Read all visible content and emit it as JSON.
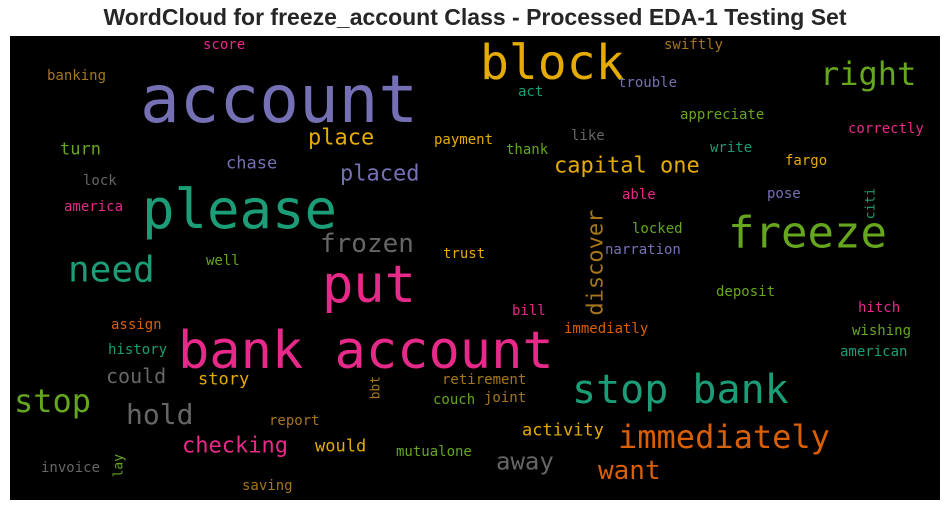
{
  "chart_data": {
    "type": "wordcloud",
    "title": "WordCloud for freeze_account Class - Processed EDA-1 Testing Set",
    "background": "#000000",
    "words": [
      {
        "text": "account",
        "size": 66,
        "color": "#7570b3"
      },
      {
        "text": "bank account",
        "size": 52,
        "color": "#e7298a"
      },
      {
        "text": "please",
        "size": 54,
        "color": "#1b9e77"
      },
      {
        "text": "put",
        "size": 52,
        "color": "#e7298a"
      },
      {
        "text": "block",
        "size": 48,
        "color": "#e6ab02"
      },
      {
        "text": "freeze",
        "size": 44,
        "color": "#66a61e"
      },
      {
        "text": "stop bank",
        "size": 40,
        "color": "#1b9e77"
      },
      {
        "text": "need",
        "size": 36,
        "color": "#1b9e77"
      },
      {
        "text": "immediately",
        "size": 32,
        "color": "#d95f02"
      },
      {
        "text": "right",
        "size": 32,
        "color": "#66a61e"
      },
      {
        "text": "stop",
        "size": 32,
        "color": "#66a61e"
      },
      {
        "text": "hold",
        "size": 28,
        "color": "#666666"
      },
      {
        "text": "frozen",
        "size": 26,
        "color": "#666666"
      },
      {
        "text": "want",
        "size": 26,
        "color": "#d95f02"
      },
      {
        "text": "away",
        "size": 24,
        "color": "#666666"
      },
      {
        "text": "capital one",
        "size": 22,
        "color": "#e6ab02"
      },
      {
        "text": "discover",
        "size": 22,
        "color": "#a6761d"
      },
      {
        "text": "checking",
        "size": 22,
        "color": "#e7298a"
      },
      {
        "text": "placed",
        "size": 22,
        "color": "#7570b3"
      },
      {
        "text": "place",
        "size": 22,
        "color": "#e6ab02"
      },
      {
        "text": "could",
        "size": 20,
        "color": "#666666"
      },
      {
        "text": "chase",
        "size": 17,
        "color": "#7570b3"
      },
      {
        "text": "activity",
        "size": 17,
        "color": "#e6ab02"
      },
      {
        "text": "would",
        "size": 17,
        "color": "#e6ab02"
      },
      {
        "text": "story",
        "size": 17,
        "color": "#e6ab02"
      },
      {
        "text": "turn",
        "size": 17,
        "color": "#66a61e"
      },
      {
        "text": "trust",
        "size": 14,
        "color": "#e6ab02"
      },
      {
        "text": "payment",
        "size": 14,
        "color": "#e6ab02"
      },
      {
        "text": "fargo",
        "size": 14,
        "color": "#e6ab02"
      },
      {
        "text": "locked",
        "size": 14,
        "color": "#66a61e"
      },
      {
        "text": "narration",
        "size": 14,
        "color": "#7570b3"
      },
      {
        "text": "deposit",
        "size": 14,
        "color": "#66a61e"
      },
      {
        "text": "appreciate",
        "size": 14,
        "color": "#66a61e"
      },
      {
        "text": "correctly",
        "size": 14,
        "color": "#e7298a"
      },
      {
        "text": "trouble",
        "size": 14,
        "color": "#7570b3"
      },
      {
        "text": "swiftly",
        "size": 14,
        "color": "#a6761d"
      },
      {
        "text": "score",
        "size": 14,
        "color": "#e7298a"
      },
      {
        "text": "banking",
        "size": 14,
        "color": "#a6761d"
      },
      {
        "text": "act",
        "size": 14,
        "color": "#1b9e77"
      },
      {
        "text": "like",
        "size": 14,
        "color": "#666666"
      },
      {
        "text": "thank",
        "size": 14,
        "color": "#66a61e"
      },
      {
        "text": "write",
        "size": 14,
        "color": "#1b9e77"
      },
      {
        "text": "able",
        "size": 14,
        "color": "#e7298a"
      },
      {
        "text": "pose",
        "size": 14,
        "color": "#7570b3"
      },
      {
        "text": "citi",
        "size": 13,
        "color": "#1b9e77"
      },
      {
        "text": "lock",
        "size": 14,
        "color": "#666666"
      },
      {
        "text": "america",
        "size": 14,
        "color": "#e7298a"
      },
      {
        "text": "well",
        "size": 14,
        "color": "#66a61e"
      },
      {
        "text": "bill",
        "size": 14,
        "color": "#e7298a"
      },
      {
        "text": "immediatly",
        "size": 14,
        "color": "#d95f02"
      },
      {
        "text": "hitch",
        "size": 14,
        "color": "#e7298a"
      },
      {
        "text": "wishing",
        "size": 14,
        "color": "#66a61e"
      },
      {
        "text": "american",
        "size": 14,
        "color": "#1b9e77"
      },
      {
        "text": "assign",
        "size": 14,
        "color": "#d95f02"
      },
      {
        "text": "history",
        "size": 14,
        "color": "#1b9e77"
      },
      {
        "text": "retirement",
        "size": 14,
        "color": "#a6761d"
      },
      {
        "text": "report",
        "size": 14,
        "color": "#a6761d"
      },
      {
        "text": "bbt",
        "size": 13,
        "color": "#a6761d"
      },
      {
        "text": "couch",
        "size": 14,
        "color": "#66a61e"
      },
      {
        "text": "joint",
        "size": 14,
        "color": "#a6761d"
      },
      {
        "text": "mutualone",
        "size": 14,
        "color": "#66a61e"
      },
      {
        "text": "invoice",
        "size": 14,
        "color": "#666666"
      },
      {
        "text": "lay",
        "size": 13,
        "color": "#66a61e"
      },
      {
        "text": "saving",
        "size": 14,
        "color": "#a6761d"
      }
    ]
  }
}
